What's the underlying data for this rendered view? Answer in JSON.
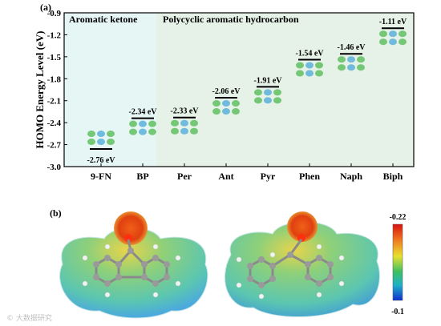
{
  "panel_a_label": "(a)",
  "panel_b_label": "(b)",
  "region_labels": [
    "Aromatic ketone",
    "Polycyclic aromatic hydrocarbon"
  ],
  "colors": {
    "ketone_bg": "#e6f6f5",
    "pah_bg": "#e6f2e8",
    "axis": "#000000",
    "orbital_green": "#5fbf5f",
    "orbital_blue": "#5ab0dc",
    "esp_red": "#e04010",
    "esp_blue": "#2060e0",
    "esp_yellow": "#e6d640",
    "esp_green": "#5ec78a"
  },
  "chart_data": {
    "type": "scatter",
    "title": "",
    "xlabel": "",
    "ylabel": "HOMO Energy Level (eV)",
    "ylim": [
      -3.0,
      -0.9
    ],
    "yticks": [
      "-0.9",
      "-1.2",
      "-1.5",
      "-1.8",
      "-2.1",
      "-2.4",
      "-2.7",
      "-3.0"
    ],
    "categories": [
      "9-FN",
      "BP",
      "Per",
      "Ant",
      "Pyr",
      "Phen",
      "Naph",
      "Biph"
    ],
    "values": [
      -2.76,
      -2.34,
      -2.33,
      -2.06,
      -1.91,
      -1.54,
      -1.46,
      -1.11
    ],
    "point_labels": [
      "-2.76 eV",
      "-2.34 eV",
      "-2.33 eV",
      "-2.06 eV",
      "-1.91 eV",
      "-1.54 eV",
      "-1.46 eV",
      "-1.11 eV"
    ],
    "grid": false,
    "legend": "none"
  },
  "colorbar": {
    "max_label": "-0.22",
    "min_label": "-0.1"
  },
  "watermark": "© 大数据研究"
}
